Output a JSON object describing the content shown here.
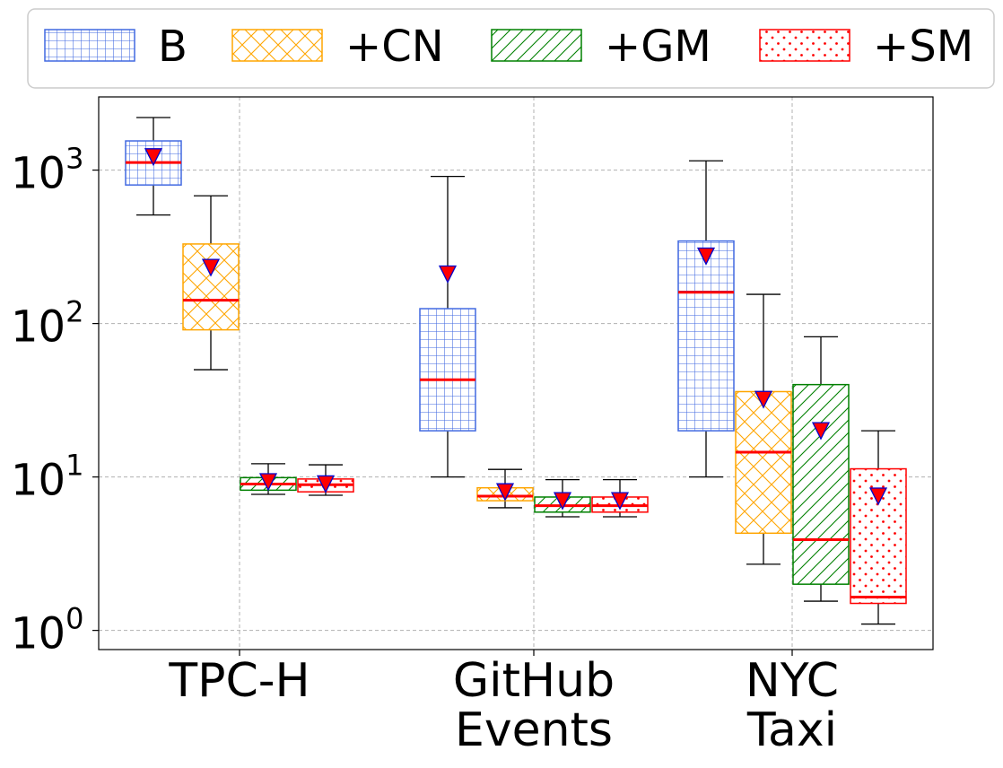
{
  "chart_data": {
    "type": "box",
    "yscale": "log",
    "ylim": [
      0.75,
      3000
    ],
    "grid": true,
    "legend_position": "top",
    "categories": [
      "TPC-H",
      "GitHub Events",
      "NYC Taxi"
    ],
    "category_label_lines": [
      [
        "TPC-H"
      ],
      [
        "GitHub",
        "Events"
      ],
      [
        "NYC",
        "Taxi"
      ]
    ],
    "y_ticks": [
      {
        "base": "10",
        "exp": "0"
      },
      {
        "base": "10",
        "exp": "1"
      },
      {
        "base": "10",
        "exp": "2"
      },
      {
        "base": "10",
        "exp": "3"
      }
    ],
    "y_tick_values": [
      1,
      10,
      100,
      1000
    ],
    "series": [
      {
        "name": "B",
        "color": "#4169e1",
        "pattern": "grid",
        "boxes": [
          {
            "whisker_low": 510,
            "q1": 800,
            "median": 1120,
            "q3": 1550,
            "whisker_high": 2200,
            "mean": 1220
          },
          {
            "whisker_low": 10,
            "q1": 20,
            "median": 43,
            "q3": 125,
            "whisker_high": 910,
            "mean": 210
          },
          {
            "whisker_low": 10,
            "q1": 20,
            "median": 160,
            "q3": 345,
            "whisker_high": 1150,
            "mean": 275
          }
        ]
      },
      {
        "name": "+CN",
        "color": "#ffa500",
        "pattern": "crosshatch",
        "boxes": [
          {
            "whisker_low": 50,
            "q1": 91,
            "median": 142,
            "q3": 330,
            "whisker_high": 680,
            "mean": 232
          },
          {
            "whisker_low": 6.3,
            "q1": 7.0,
            "median": 7.5,
            "q3": 8.5,
            "whisker_high": 11.2,
            "mean": 8.0
          },
          {
            "whisker_low": 2.7,
            "q1": 4.3,
            "median": 14.5,
            "q3": 36,
            "whisker_high": 155,
            "mean": 32
          }
        ]
      },
      {
        "name": "+GM",
        "color": "#008000",
        "pattern": "diagonal",
        "boxes": [
          {
            "whisker_low": 7.7,
            "q1": 8.2,
            "median": 9.0,
            "q3": 9.9,
            "whisker_high": 12.2,
            "mean": 9.3
          },
          {
            "whisker_low": 5.5,
            "q1": 5.9,
            "median": 6.5,
            "q3": 7.4,
            "whisker_high": 9.6,
            "mean": 7.0
          },
          {
            "whisker_low": 1.55,
            "q1": 2.0,
            "median": 3.9,
            "q3": 40,
            "whisker_high": 82,
            "mean": 20
          }
        ]
      },
      {
        "name": "+SM",
        "color": "#ff0000",
        "pattern": "dots",
        "boxes": [
          {
            "whisker_low": 7.6,
            "q1": 8.0,
            "median": 8.9,
            "q3": 9.7,
            "whisker_high": 12.0,
            "mean": 9.0
          },
          {
            "whisker_low": 5.5,
            "q1": 5.9,
            "median": 6.5,
            "q3": 7.4,
            "whisker_high": 9.6,
            "mean": 7.0
          },
          {
            "whisker_low": 1.1,
            "q1": 1.5,
            "median": 1.65,
            "q3": 11.3,
            "whisker_high": 20,
            "mean": 7.5
          }
        ]
      }
    ],
    "median_color": "#ff0000",
    "mean_marker": {
      "shape": "triangle-down",
      "fill": "#ff0000",
      "edge": "#0000cc"
    }
  }
}
